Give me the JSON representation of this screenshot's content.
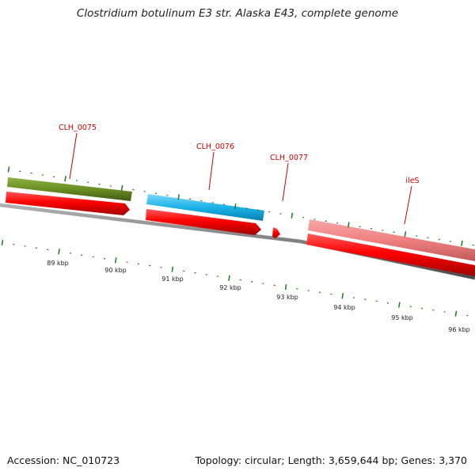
{
  "map": {
    "title": "Clostridium botulinum E3 str. Alaska E43, complete genome",
    "accession": "Accession: NC_010723",
    "summary": "Topology: circular; Length: 3,659,644 bp; Genes: 3,370",
    "scale_labels": [
      "89 kbp",
      "90 kbp",
      "91 kbp",
      "92 kbp",
      "93 kbp",
      "94 kbp",
      "95 kbp",
      "96 kbp"
    ],
    "genes": [
      {
        "label": "CLH_0075",
        "color": "#6b8e23"
      },
      {
        "label": "CLH_0076",
        "color": "#1ab2e8"
      },
      {
        "label": "CLH_0077",
        "color": "#ffffff"
      },
      {
        "label": "ileS",
        "color": "#f08080"
      }
    ],
    "colors": {
      "cds_strand": "#ff0000",
      "label_text": "#cc0000",
      "tick": "#1f7a1f",
      "backbone": "#808080"
    }
  }
}
